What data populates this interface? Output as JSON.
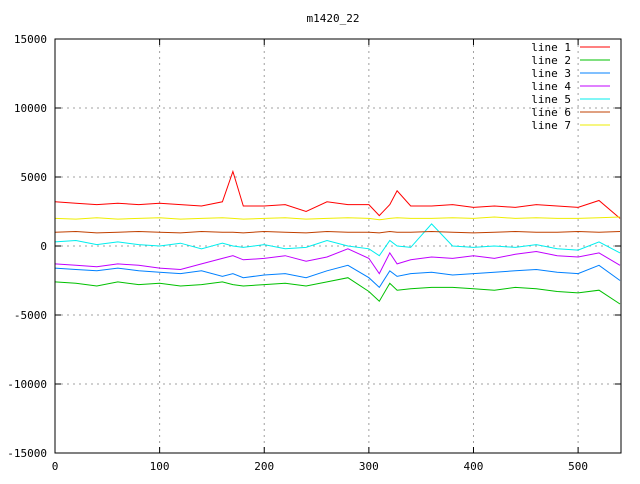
{
  "chart_data": {
    "type": "line",
    "title": "m1420_22",
    "xlabel": "",
    "ylabel": "",
    "xlim": [
      0,
      541
    ],
    "ylim": [
      -15000,
      15000
    ],
    "xticks": [
      0,
      100,
      200,
      300,
      400,
      500
    ],
    "yticks": [
      -15000,
      -10000,
      -5000,
      0,
      5000,
      10000,
      15000
    ],
    "grid": true,
    "legend_position": "top-right",
    "x": [
      0,
      20,
      40,
      60,
      80,
      100,
      120,
      140,
      160,
      170,
      180,
      200,
      220,
      240,
      260,
      280,
      300,
      310,
      320,
      327,
      340,
      360,
      380,
      400,
      420,
      440,
      460,
      480,
      500,
      520,
      540
    ],
    "series": [
      {
        "name": "line 1",
        "color": "#ff0000",
        "values": [
          3200,
          3100,
          3000,
          3100,
          3000,
          3100,
          3000,
          2900,
          3200,
          5400,
          2900,
          2900,
          3000,
          2500,
          3200,
          3000,
          3000,
          2200,
          3000,
          4000,
          2900,
          2900,
          3000,
          2800,
          2900,
          2800,
          3000,
          2900,
          2800,
          3300,
          2000
        ]
      },
      {
        "name": "line 2",
        "color": "#00c000",
        "values": [
          -2600,
          -2700,
          -2900,
          -2600,
          -2800,
          -2700,
          -2900,
          -2800,
          -2600,
          -2800,
          -2900,
          -2800,
          -2700,
          -2900,
          -2600,
          -2300,
          -3300,
          -4000,
          -2700,
          -3200,
          -3100,
          -3000,
          -3000,
          -3100,
          -3200,
          -3000,
          -3100,
          -3300,
          -3400,
          -3200,
          -4200
        ]
      },
      {
        "name": "line 3",
        "color": "#0080ff",
        "values": [
          -1600,
          -1700,
          -1800,
          -1600,
          -1800,
          -1900,
          -2000,
          -1800,
          -2200,
          -2000,
          -2300,
          -2100,
          -2000,
          -2300,
          -1800,
          -1400,
          -2300,
          -3000,
          -1800,
          -2200,
          -2000,
          -1900,
          -2100,
          -2000,
          -1900,
          -1800,
          -1700,
          -1900,
          -2000,
          -1400,
          -2500
        ]
      },
      {
        "name": "line 4",
        "color": "#c000ff",
        "values": [
          -1300,
          -1400,
          -1500,
          -1300,
          -1400,
          -1600,
          -1700,
          -1300,
          -900,
          -700,
          -1000,
          -900,
          -700,
          -1100,
          -800,
          -200,
          -900,
          -2000,
          -500,
          -1300,
          -1000,
          -800,
          -900,
          -700,
          -900,
          -600,
          -400,
          -700,
          -800,
          -500,
          -1400
        ]
      },
      {
        "name": "line 5",
        "color": "#00eeee",
        "values": [
          300,
          400,
          100,
          300,
          100,
          0,
          200,
          -200,
          200,
          0,
          -100,
          100,
          -200,
          -100,
          400,
          0,
          -200,
          -700,
          400,
          0,
          -100,
          1600,
          0,
          -100,
          0,
          -100,
          100,
          -200,
          -300,
          300,
          -500
        ]
      },
      {
        "name": "line 6",
        "color": "#c04000",
        "values": [
          1000,
          1050,
          950,
          1000,
          1050,
          1000,
          950,
          1050,
          1000,
          1000,
          950,
          1050,
          1000,
          950,
          1050,
          1000,
          1000,
          950,
          1050,
          1000,
          1000,
          1050,
          1000,
          950,
          1000,
          1050,
          1000,
          1000,
          1050,
          1000,
          1050
        ]
      },
      {
        "name": "line 7",
        "color": "#eeee00",
        "values": [
          2000,
          1950,
          2050,
          1950,
          2000,
          2050,
          1950,
          2000,
          2050,
          2000,
          1950,
          2000,
          2050,
          1950,
          2000,
          2050,
          2000,
          1900,
          2000,
          2050,
          2000,
          2000,
          2050,
          2000,
          2100,
          2000,
          2050,
          2000,
          2000,
          2050,
          2100
        ]
      }
    ]
  }
}
